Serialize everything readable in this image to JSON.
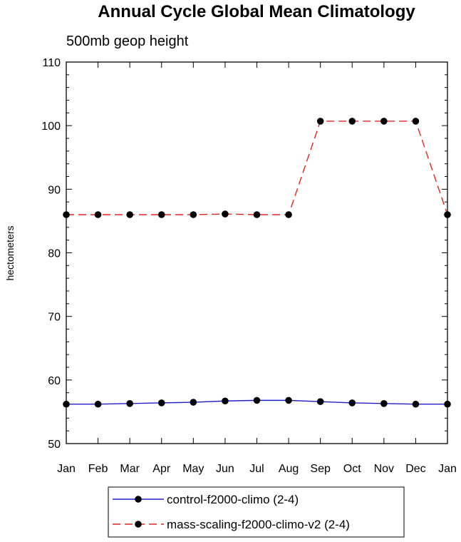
{
  "chart_data": {
    "type": "line",
    "title": "Annual Cycle Global Mean Climatology",
    "subtitle": "500mb geop height",
    "xlabel": "",
    "ylabel": "hectometers",
    "categories": [
      "Jan",
      "Feb",
      "Mar",
      "Apr",
      "May",
      "Jun",
      "Jul",
      "Aug",
      "Sep",
      "Oct",
      "Nov",
      "Dec",
      "Jan"
    ],
    "ylim": [
      50,
      110
    ],
    "yticks": [
      50,
      60,
      70,
      80,
      90,
      100,
      110
    ],
    "grid": false,
    "legend_position": "bottom",
    "series": [
      {
        "name": "control-f2000-climo (2-4)",
        "values": [
          56.2,
          56.2,
          56.3,
          56.4,
          56.5,
          56.7,
          56.8,
          56.8,
          56.6,
          56.4,
          56.3,
          56.2,
          56.2
        ],
        "color": "#1f1fcc",
        "line_style": "solid",
        "marker": "circle"
      },
      {
        "name": "mass-scaling-f2000-climo-v2 (2-4)",
        "values": [
          86.0,
          86.0,
          86.0,
          86.0,
          86.0,
          86.1,
          86.0,
          86.0,
          100.7,
          100.7,
          100.7,
          100.7,
          86.0
        ],
        "color": "#e8231d",
        "line_style": "dashed",
        "marker": "circle"
      }
    ]
  }
}
